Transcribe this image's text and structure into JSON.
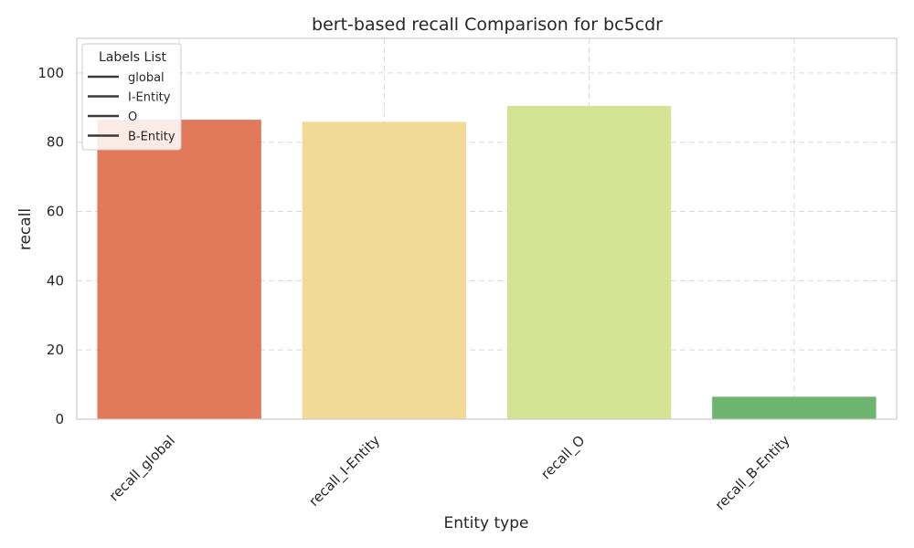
{
  "chart_data": {
    "type": "bar",
    "title": "bert-based recall Comparison for bc5cdr",
    "xlabel": "Entity type",
    "ylabel": "recall",
    "categories": [
      "recall_global",
      "recall_I-Entity",
      "recall_O",
      "recall_B-Entity"
    ],
    "values": [
      86.5,
      85.9,
      90.5,
      6.5
    ],
    "colors": [
      "#e07a5a",
      "#f1d996",
      "#d5e394",
      "#6db56e"
    ],
    "ylim": [
      0,
      110
    ],
    "yticks": [
      0,
      20,
      40,
      60,
      80,
      100
    ],
    "grid": true,
    "legend": {
      "title": "Labels List",
      "position": "top-left",
      "entries": [
        "global",
        "I-Entity",
        "O",
        "B-Entity"
      ]
    }
  }
}
